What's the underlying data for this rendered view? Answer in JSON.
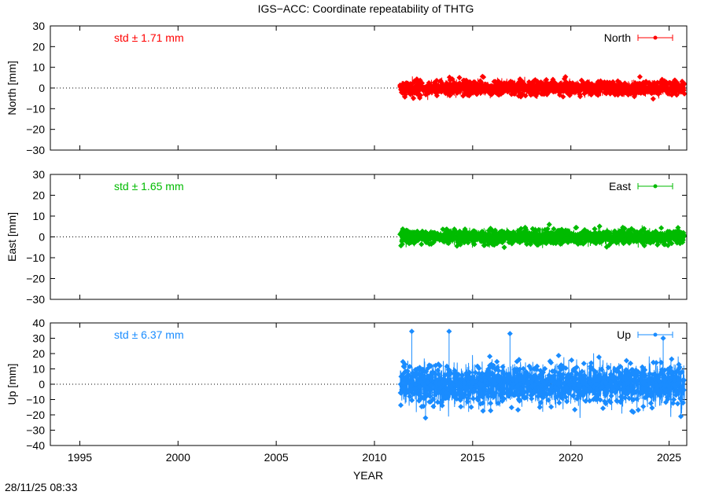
{
  "title": "IGS−ACC: Coordinate repeatability of THTG",
  "timestamp": "28/11/25 08:33",
  "chart_data": [
    {
      "type": "scatter",
      "name": "North",
      "ylabel": "North [mm]",
      "ylim": [
        -30,
        30
      ],
      "yticks": [
        -30,
        -20,
        -10,
        0,
        10,
        20,
        30
      ],
      "std_text": "std ± 1.71 mm",
      "legend": "North",
      "legend_position": "top-right",
      "color": "#ff0000",
      "x_start": 2011.3,
      "x_end": 2025.8,
      "std": 1.71,
      "min": -8,
      "max": 9
    },
    {
      "type": "scatter",
      "name": "East",
      "ylabel": "East [mm]",
      "ylim": [
        -30,
        30
      ],
      "yticks": [
        -30,
        -20,
        -10,
        0,
        10,
        20,
        30
      ],
      "std_text": "std ± 1.65 mm",
      "legend": "East",
      "legend_position": "top-right",
      "color": "#00bb00",
      "x_start": 2011.3,
      "x_end": 2025.8,
      "std": 1.65,
      "min": -8,
      "max": 7
    },
    {
      "type": "scatter",
      "name": "Up",
      "ylabel": "Up [mm]",
      "ylim": [
        -40,
        40
      ],
      "yticks": [
        -40,
        -30,
        -20,
        -10,
        0,
        10,
        20,
        30,
        40
      ],
      "std_text": "std ± 6.37 mm",
      "legend": "Up",
      "legend_position": "top-right",
      "color": "#1a8cff",
      "x_start": 2011.3,
      "x_end": 2025.8,
      "std": 6.37,
      "min": -22,
      "max": 35,
      "outliers": [
        [
          2011.9,
          34.5
        ],
        [
          2013.8,
          34.5
        ],
        [
          2016.9,
          33
        ],
        [
          2012.6,
          -22
        ],
        [
          2024.7,
          30
        ],
        [
          2025.6,
          -21
        ]
      ]
    }
  ],
  "xaxis": {
    "label": "YEAR",
    "xlim": [
      1993.5,
      2025.9
    ],
    "ticks": [
      1995,
      2000,
      2005,
      2010,
      2015,
      2020,
      2025
    ]
  }
}
